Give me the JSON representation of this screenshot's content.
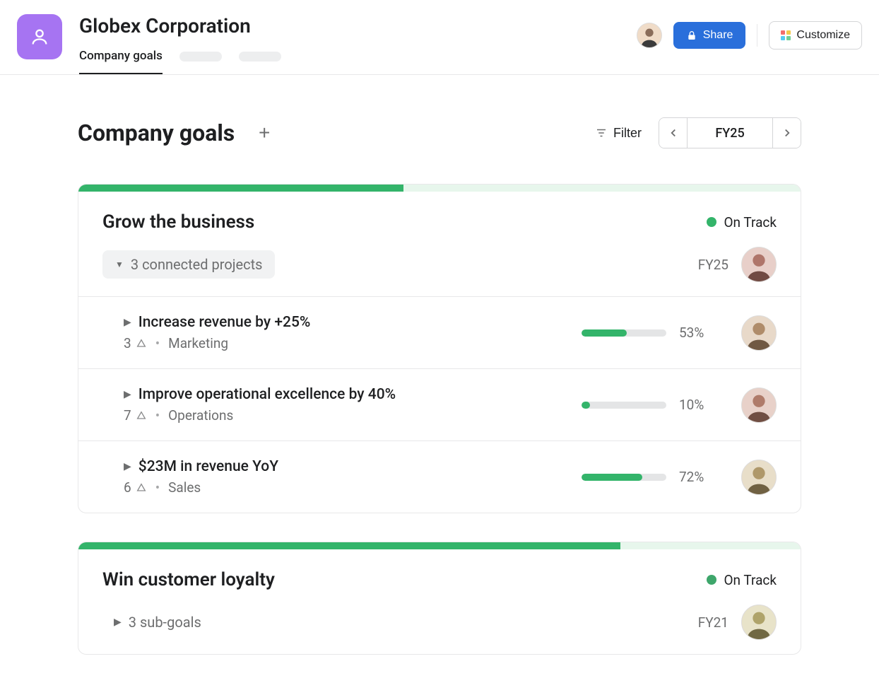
{
  "header": {
    "company_name": "Globex Corporation",
    "active_tab": "Company goals",
    "share_label": "Share",
    "customize_label": "Customize",
    "logo_bg": "#a674f2",
    "share_bg": "#2a6fdb",
    "grid_colors": [
      "#f26d6d",
      "#f2c94c",
      "#56ccf2",
      "#6fcf97"
    ]
  },
  "page": {
    "title": "Company goals",
    "filter_label": "Filter",
    "period": "FY25"
  },
  "goals": [
    {
      "title": "Grow the business",
      "status_label": "On Track",
      "status_color": "#33b46a",
      "progress_pct": 45,
      "period": "FY25",
      "projects_label": "3 connected projects",
      "subgoals": [
        {
          "title": "Increase revenue by +25%",
          "count": "3",
          "team": "Marketing",
          "pct": 53,
          "avatar_hue": 30
        },
        {
          "title": "Improve operational excellence by 40%",
          "count": "7",
          "team": "Operations",
          "pct": 10,
          "avatar_hue": 15
        },
        {
          "title": "$23M in revenue YoY",
          "count": "6",
          "team": "Sales",
          "pct": 72,
          "avatar_hue": 40
        }
      ]
    },
    {
      "title": "Win customer loyalty",
      "status_label": "On Track",
      "status_color": "#3ea66b",
      "progress_pct": 75,
      "period": "FY21",
      "subgoals_label": "3 sub-goals"
    }
  ],
  "colors": {
    "bar_bg": "#e7f6ec",
    "bar_fill": "#33b46a",
    "mini_bg": "#e4e5e6"
  }
}
